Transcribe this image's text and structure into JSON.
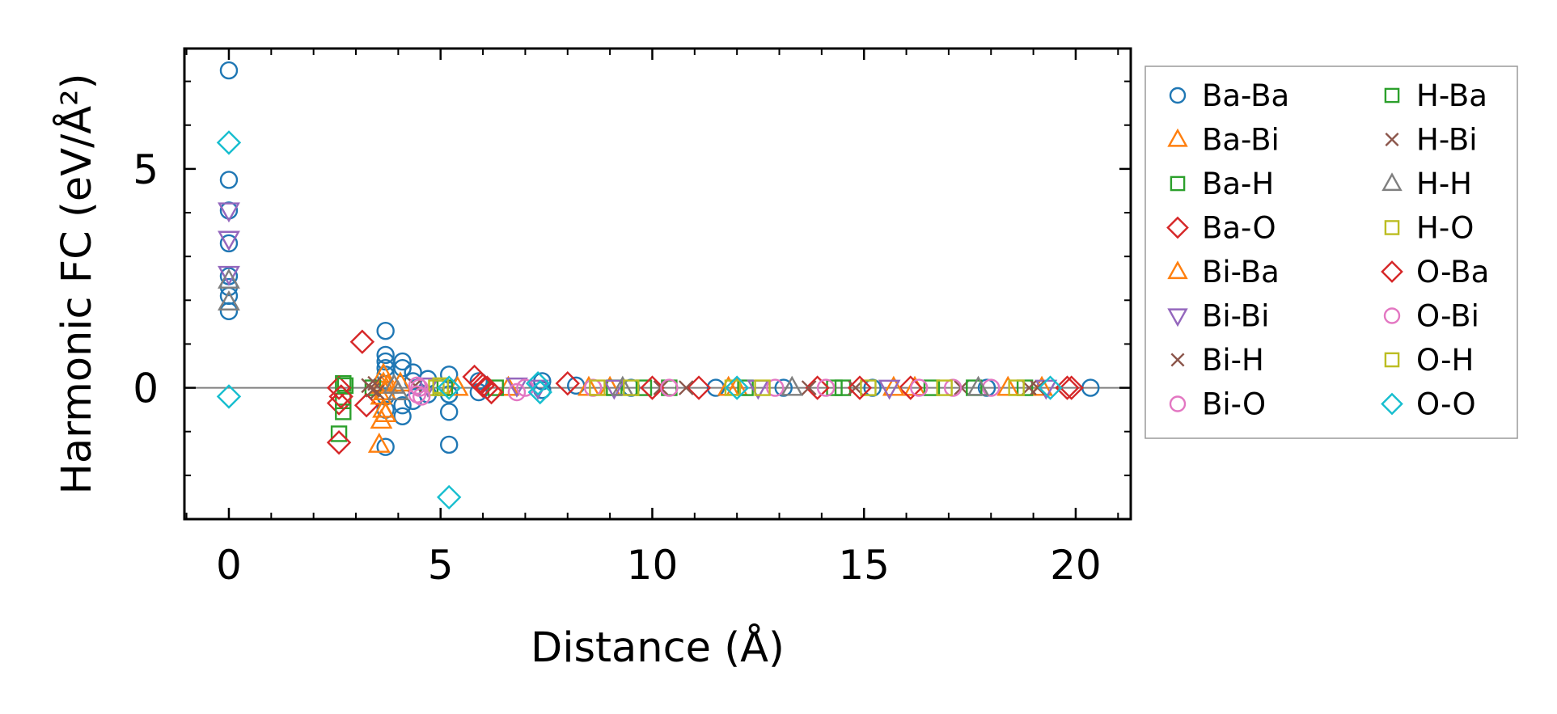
{
  "chart_data": {
    "type": "scatter",
    "xlabel": "Distance (Å)",
    "ylabel": "Harmonic FC (eV/Å²)",
    "xlim": [
      -1.05,
      21.3
    ],
    "ylim": [
      -3.0,
      7.75
    ],
    "x_ticks": [
      0,
      5,
      10,
      15,
      20
    ],
    "y_ticks": [
      0,
      5
    ],
    "zero_line": true,
    "grid": false,
    "legend_position": "outside-right",
    "series": [
      {
        "name": "Ba-Ba",
        "marker": "circle",
        "color": "#1f77b4",
        "points": [
          [
            0,
            7.25
          ],
          [
            0,
            4.75
          ],
          [
            0,
            4.05
          ],
          [
            0,
            3.3
          ],
          [
            0,
            2.55
          ],
          [
            0,
            2.3
          ],
          [
            0,
            2.1
          ],
          [
            0,
            1.75
          ],
          [
            3.7,
            1.3
          ],
          [
            3.7,
            0.75
          ],
          [
            3.7,
            0.6
          ],
          [
            3.7,
            0.45
          ],
          [
            3.7,
            0.3
          ],
          [
            3.7,
            -0.2
          ],
          [
            3.7,
            -0.5
          ],
          [
            3.7,
            -1.35
          ],
          [
            4.1,
            0.6
          ],
          [
            4.1,
            0.45
          ],
          [
            4.1,
            -0.4
          ],
          [
            4.1,
            -0.65
          ],
          [
            4.35,
            0.35
          ],
          [
            4.35,
            0.15
          ],
          [
            4.35,
            -0.3
          ],
          [
            4.7,
            0.2
          ],
          [
            4.7,
            -0.15
          ],
          [
            5.2,
            0.3
          ],
          [
            5.2,
            -0.15
          ],
          [
            5.2,
            -0.55
          ],
          [
            5.2,
            -1.3
          ],
          [
            5.9,
            0.15
          ],
          [
            5.9,
            -0.1
          ],
          [
            7.4,
            0.15
          ],
          [
            7.4,
            -0.05
          ],
          [
            8.2,
            0.05
          ],
          [
            9.5,
            0.0
          ],
          [
            11.5,
            0.0
          ],
          [
            13.1,
            0.0
          ],
          [
            15.2,
            0.0
          ],
          [
            17.9,
            0.0
          ],
          [
            20.35,
            0.0
          ]
        ]
      },
      {
        "name": "Ba-Bi",
        "marker": "triangle-up",
        "color": "#ff7f0e",
        "points": [
          [
            3.65,
            0.3
          ],
          [
            3.65,
            0.1
          ],
          [
            3.7,
            -0.1
          ],
          [
            3.65,
            -0.5
          ],
          [
            3.6,
            -0.75
          ],
          [
            3.55,
            -1.3
          ],
          [
            3.75,
            0.05
          ],
          [
            4.05,
            0.1
          ],
          [
            6.6,
            0.0
          ],
          [
            9.0,
            0.0
          ],
          [
            12.0,
            0.0
          ],
          [
            16.2,
            0.0
          ],
          [
            19.2,
            0.0
          ]
        ]
      },
      {
        "name": "Ba-H",
        "marker": "square",
        "color": "#2ca02c",
        "points": [
          [
            2.7,
            0.1
          ],
          [
            2.7,
            -0.3
          ],
          [
            2.6,
            -1.05
          ],
          [
            3.4,
            0.0
          ],
          [
            5.0,
            0.0
          ],
          [
            6.3,
            0.0
          ],
          [
            9.1,
            0.0
          ],
          [
            10.4,
            0.0
          ],
          [
            12.2,
            0.0
          ],
          [
            14.3,
            0.0
          ],
          [
            16.6,
            0.0
          ],
          [
            18.8,
            0.0
          ]
        ]
      },
      {
        "name": "Ba-O",
        "marker": "diamond",
        "color": "#d62728",
        "points": [
          [
            3.15,
            1.05
          ],
          [
            2.6,
            0.0
          ],
          [
            2.6,
            -0.35
          ],
          [
            2.6,
            -1.25
          ],
          [
            3.25,
            -0.4
          ],
          [
            5.8,
            0.25
          ],
          [
            6.0,
            0.05
          ],
          [
            6.2,
            -0.1
          ],
          [
            8.0,
            0.1
          ],
          [
            11.1,
            0.0
          ],
          [
            13.9,
            0.0
          ],
          [
            16.1,
            0.0
          ],
          [
            19.8,
            0.0
          ]
        ]
      },
      {
        "name": "Bi-Ba",
        "marker": "triangle-up",
        "color": "#ff7f0e",
        "points": [
          [
            3.6,
            0.05
          ],
          [
            3.6,
            -0.2
          ],
          [
            3.7,
            -0.6
          ],
          [
            5.4,
            0.0
          ],
          [
            8.5,
            0.0
          ],
          [
            11.8,
            0.0
          ],
          [
            15.7,
            0.0
          ],
          [
            18.4,
            0.0
          ]
        ]
      },
      {
        "name": "Bi-Bi",
        "marker": "triangle-down",
        "color": "#9467bd",
        "points": [
          [
            0,
            4.05
          ],
          [
            0,
            3.4
          ],
          [
            0,
            2.6
          ],
          [
            4.7,
            0.05
          ],
          [
            6.8,
            0.05
          ],
          [
            7.3,
            0.0
          ],
          [
            9.1,
            0.0
          ],
          [
            12.5,
            0.0
          ],
          [
            15.6,
            0.0
          ],
          [
            19.3,
            0.0
          ]
        ]
      },
      {
        "name": "Bi-H",
        "marker": "x",
        "color": "#8c564b",
        "points": [
          [
            3.3,
            0.05
          ],
          [
            3.4,
            -0.05
          ],
          [
            4.4,
            0.05
          ],
          [
            10.2,
            0.0
          ],
          [
            13.7,
            0.0
          ],
          [
            17.3,
            0.0
          ],
          [
            18.9,
            0.0
          ]
        ]
      },
      {
        "name": "Bi-O",
        "marker": "circle",
        "color": "#e377c2",
        "points": [
          [
            4.45,
            0.05
          ],
          [
            4.45,
            -0.15
          ],
          [
            6.8,
            -0.1
          ],
          [
            8.6,
            0.0
          ],
          [
            12.9,
            0.0
          ],
          [
            16.3,
            0.0
          ],
          [
            18.0,
            0.0
          ]
        ]
      },
      {
        "name": "H-Ba",
        "marker": "square",
        "color": "#2ca02c",
        "points": [
          [
            2.75,
            0.05
          ],
          [
            2.7,
            -0.55
          ],
          [
            5.1,
            0.0
          ],
          [
            9.8,
            0.0
          ],
          [
            14.5,
            0.0
          ],
          [
            17.6,
            0.0
          ]
        ]
      },
      {
        "name": "H-Bi",
        "marker": "x",
        "color": "#8c564b",
        "points": [
          [
            3.45,
            0.1
          ],
          [
            3.5,
            -0.1
          ],
          [
            10.8,
            0.0
          ],
          [
            14.8,
            0.0
          ],
          [
            19.1,
            0.0
          ]
        ]
      },
      {
        "name": "H-H",
        "marker": "triangle-up",
        "color": "#7f7f7f",
        "points": [
          [
            0,
            2.45
          ],
          [
            0,
            1.95
          ],
          [
            3.9,
            0.05
          ],
          [
            4.0,
            -0.1
          ],
          [
            9.3,
            0.0
          ],
          [
            13.3,
            0.0
          ],
          [
            17.7,
            0.0
          ]
        ]
      },
      {
        "name": "H-O",
        "marker": "square",
        "color": "#bcbd22",
        "points": [
          [
            4.9,
            0.0
          ],
          [
            9.5,
            0.0
          ],
          [
            11.9,
            0.0
          ],
          [
            15.1,
            0.0
          ],
          [
            18.6,
            0.0
          ]
        ]
      },
      {
        "name": "O-Ba",
        "marker": "diamond",
        "color": "#d62728",
        "points": [
          [
            2.65,
            -0.2
          ],
          [
            5.95,
            0.1
          ],
          [
            6.1,
            0.0
          ],
          [
            10.0,
            0.0
          ],
          [
            14.9,
            0.0
          ],
          [
            19.9,
            0.0
          ]
        ]
      },
      {
        "name": "O-Bi",
        "marker": "circle",
        "color": "#e377c2",
        "points": [
          [
            4.5,
            0.0
          ],
          [
            4.55,
            -0.2
          ],
          [
            7.0,
            0.0
          ],
          [
            10.4,
            0.0
          ],
          [
            14.1,
            0.0
          ],
          [
            17.1,
            0.0
          ]
        ]
      },
      {
        "name": "O-H",
        "marker": "square",
        "color": "#bcbd22",
        "points": [
          [
            5.0,
            0.05
          ],
          [
            8.7,
            0.0
          ],
          [
            12.6,
            0.0
          ],
          [
            16.9,
            0.0
          ]
        ]
      },
      {
        "name": "O-O",
        "marker": "diamond",
        "color": "#17becf",
        "points": [
          [
            0,
            5.6
          ],
          [
            0,
            -0.2
          ],
          [
            5.2,
            -2.5
          ],
          [
            5.2,
            0.0
          ],
          [
            7.3,
            0.1
          ],
          [
            7.35,
            -0.1
          ],
          [
            12.0,
            0.0
          ],
          [
            19.4,
            0.0
          ]
        ]
      }
    ]
  }
}
